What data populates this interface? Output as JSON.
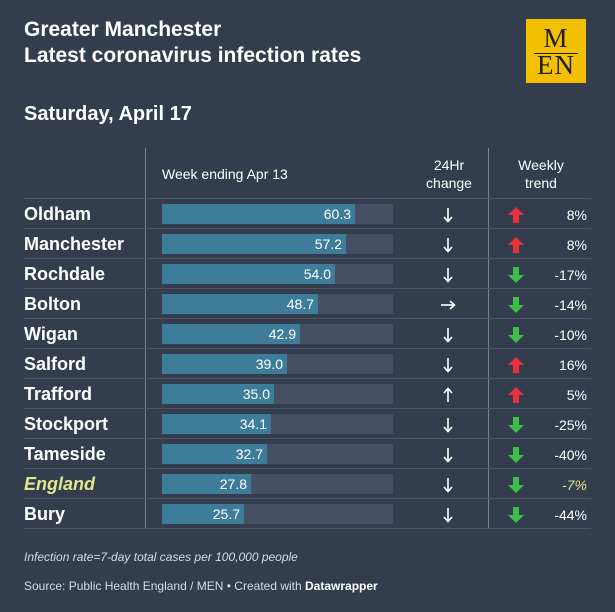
{
  "header": {
    "title_line1": "Greater Manchester",
    "title_line2": "Latest coronavirus infection rates",
    "date": "Saturday, April 17",
    "logo_line1": "M",
    "logo_line2": "EN"
  },
  "columns": {
    "rate": "Week ending Apr 13",
    "change_line1": "24Hr",
    "change_line2": "change",
    "trend_line1": "Weekly",
    "trend_line2": "trend"
  },
  "colors": {
    "background": "#333d4e",
    "bar": "#3d7d9a",
    "bar_track": "#465064",
    "up_arrow": "#e8313a",
    "down_arrow": "#3fbf4a",
    "england_highlight": "#e2e58d"
  },
  "chart_data": {
    "type": "table",
    "bar_max": 72,
    "rows": [
      {
        "area": "Oldham",
        "rate": 60.3,
        "rate_label": "60.3",
        "change": "down",
        "trend": "up",
        "trend_pct": "8%"
      },
      {
        "area": "Manchester",
        "rate": 57.2,
        "rate_label": "57.2",
        "change": "down",
        "trend": "up",
        "trend_pct": "8%"
      },
      {
        "area": "Rochdale",
        "rate": 54.0,
        "rate_label": "54.0",
        "change": "down",
        "trend": "down",
        "trend_pct": "-17%"
      },
      {
        "area": "Bolton",
        "rate": 48.7,
        "rate_label": "48.7",
        "change": "right",
        "trend": "down",
        "trend_pct": "-14%"
      },
      {
        "area": "Wigan",
        "rate": 42.9,
        "rate_label": "42.9",
        "change": "down",
        "trend": "down",
        "trend_pct": "-10%"
      },
      {
        "area": "Salford",
        "rate": 39.0,
        "rate_label": "39.0",
        "change": "down",
        "trend": "up",
        "trend_pct": "16%"
      },
      {
        "area": "Trafford",
        "rate": 35.0,
        "rate_label": "35.0",
        "change": "up",
        "trend": "up",
        "trend_pct": "5%"
      },
      {
        "area": "Stockport",
        "rate": 34.1,
        "rate_label": "34.1",
        "change": "down",
        "trend": "down",
        "trend_pct": "-25%"
      },
      {
        "area": "Tameside",
        "rate": 32.7,
        "rate_label": "32.7",
        "change": "down",
        "trend": "down",
        "trend_pct": "-40%"
      },
      {
        "area": "England",
        "rate": 27.8,
        "rate_label": "27.8",
        "change": "down",
        "trend": "down",
        "trend_pct": "-7%",
        "highlight": true
      },
      {
        "area": "Bury",
        "rate": 25.7,
        "rate_label": "25.7",
        "change": "down",
        "trend": "down",
        "trend_pct": "-44%"
      }
    ]
  },
  "footer": {
    "note": "Infection rate=7-day total cases per 100,000 people",
    "source_prefix": "Source: Public Health England / MEN • Created with ",
    "source_tool": "Datawrapper"
  }
}
